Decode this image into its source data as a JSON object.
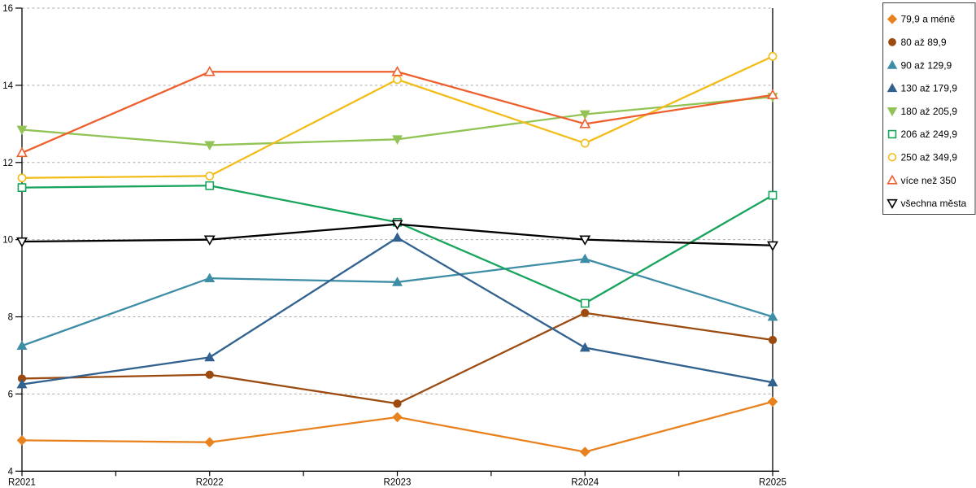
{
  "chart_data": {
    "type": "line",
    "title": "",
    "xlabel": "",
    "ylabel": "",
    "categories": [
      "R2021",
      "R2022",
      "R2023",
      "R2024",
      "R2025"
    ],
    "ylim": [
      4,
      16
    ],
    "ytick_step": 2,
    "yticks": [
      4,
      6,
      8,
      10,
      12,
      14,
      16
    ],
    "grid": "horizontal-dashed",
    "legend_position": "top-right",
    "plot_border_right": true,
    "colors": {
      "axis": "#000000",
      "gridline": "#ababab",
      "legend_border": "#3f3f3f",
      "background": "#ffffff"
    },
    "series": [
      {
        "name": "79,9 a méně",
        "marker": "diamond",
        "fill": "solid",
        "color": "#E8821E",
        "values": [
          4.8,
          4.75,
          5.4,
          4.5,
          5.8
        ]
      },
      {
        "name": "80 až 89,9",
        "marker": "circle",
        "fill": "solid",
        "color": "#9C4B10",
        "values": [
          6.4,
          6.5,
          5.75,
          8.1,
          7.4
        ]
      },
      {
        "name": "90 až 129,9",
        "marker": "triangle-up",
        "fill": "solid",
        "color": "#3E8DA6",
        "values": [
          7.25,
          9.0,
          8.9,
          9.5,
          8.0
        ]
      },
      {
        "name": "130 až 179,9",
        "marker": "triangle-up",
        "fill": "solid",
        "color": "#31618E",
        "values": [
          6.25,
          6.95,
          10.05,
          7.2,
          6.3
        ]
      },
      {
        "name": "180 až 205,9",
        "marker": "triangle-down",
        "fill": "solid",
        "color": "#92C355",
        "values": [
          12.85,
          12.45,
          12.6,
          13.25,
          13.7
        ]
      },
      {
        "name": "206 až 249,9",
        "marker": "square",
        "fill": "hollow",
        "color": "#17A45B",
        "values": [
          11.35,
          11.4,
          10.45,
          8.35,
          11.15
        ]
      },
      {
        "name": "250 až 349,9",
        "marker": "circle",
        "fill": "hollow",
        "color": "#F2BC19",
        "values": [
          11.6,
          11.65,
          14.15,
          12.5,
          14.75
        ]
      },
      {
        "name": "více než 350",
        "marker": "triangle-up",
        "fill": "hollow",
        "color": "#EE5F2E",
        "values": [
          12.25,
          14.35,
          14.35,
          13.0,
          13.75
        ]
      },
      {
        "name": "všechna města",
        "marker": "triangle-down",
        "fill": "hollow",
        "color": "#000000",
        "values": [
          9.95,
          10.0,
          10.4,
          10.0,
          9.85
        ]
      }
    ]
  }
}
